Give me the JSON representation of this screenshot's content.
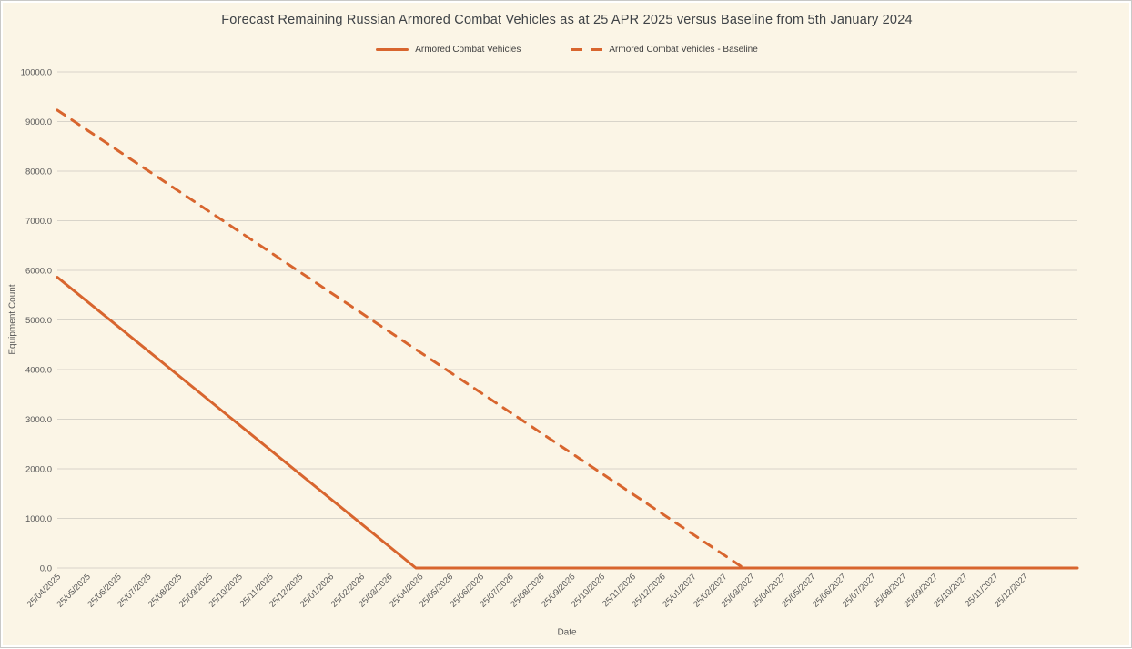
{
  "chart_data": {
    "type": "line",
    "title": "Forecast Remaining Russian Armored Combat Vehicles as at 25 APR 2025 versus Baseline from 5th January 2024",
    "xlabel": "Date",
    "ylabel": "Equipment Count",
    "ylim": [
      0,
      10000
    ],
    "grid": "horizontal",
    "legend_position": "top-center",
    "colors": {
      "background": "#FBF5E6",
      "gridline": "#D8D4CA",
      "accent_orange": "#D8652E",
      "title_text": "#3F4347",
      "axis_text": "#595959",
      "frame_border": "#C9C9C7"
    },
    "y_tick_values": [
      0,
      1000,
      2000,
      3000,
      4000,
      5000,
      6000,
      7000,
      8000,
      9000,
      10000
    ],
    "y_tick_labels": [
      "0.0",
      "1000.0",
      "2000.0",
      "3000.0",
      "4000.0",
      "5000.0",
      "6000.0",
      "7000.0",
      "8000.0",
      "9000.0",
      "10000.0"
    ],
    "x_tick_labels": [
      "25/04/2025",
      "25/05/2025",
      "25/06/2025",
      "25/07/2025",
      "25/08/2025",
      "25/09/2025",
      "25/10/2025",
      "25/11/2025",
      "25/12/2025",
      "25/01/2026",
      "25/02/2026",
      "25/03/2026",
      "25/04/2026",
      "25/05/2026",
      "25/06/2026",
      "25/07/2026",
      "25/08/2026",
      "25/09/2026",
      "25/10/2026",
      "25/11/2026",
      "25/12/2026",
      "25/01/2027",
      "25/02/2027",
      "25/03/2027",
      "25/04/2027",
      "25/05/2027",
      "25/06/2027",
      "25/07/2027",
      "25/08/2027",
      "25/09/2027",
      "25/10/2027",
      "25/11/2027",
      "25/12/2027"
    ],
    "series": [
      {
        "name": "Armored Combat Vehicles",
        "line_style": "solid",
        "color": "#D8652E",
        "points": [
          {
            "date": "25/04/2025",
            "value": 5860
          },
          {
            "date": "21/04/2026",
            "value": 0
          }
        ],
        "flat_zero_extends_to_chart_right_edge": true
      },
      {
        "name": "Armored Combat Vehicles - Baseline",
        "line_style": "dashed",
        "color": "#D8652E",
        "points": [
          {
            "date": "25/04/2025",
            "value": 9230
          },
          {
            "date": "17/03/2027",
            "value": 0
          }
        ],
        "flat_zero_extends_to_chart_right_edge": false
      }
    ]
  }
}
